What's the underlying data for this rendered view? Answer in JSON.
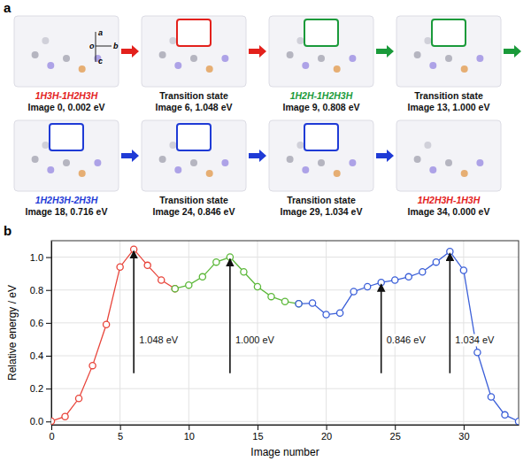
{
  "diagram": {
    "panel_label": "a",
    "axes": [
      "a",
      "b",
      "c",
      "o"
    ],
    "rows": [
      [
        {
          "name": "1H3H-1H2H3H",
          "color": "#e3211c",
          "caption": "Image 0, 0.002 eV",
          "arrow": "#e3211c"
        },
        {
          "name": "Transition state",
          "caption": "Image 6, 1.048 eV",
          "frame": "#e3211c",
          "arrow": "#e3211c"
        },
        {
          "name": "1H2H-1H2H3H",
          "color": "#1a9a3a",
          "caption": "Image 9, 0.808 eV",
          "frame": "#1a9a3a",
          "arrow": "#1a9a3a"
        },
        {
          "name": "Transition state",
          "caption": "Image 13, 1.000 eV",
          "frame": "#1a9a3a",
          "arrow": "#1a9a3a"
        }
      ],
      [
        {
          "name": "1H2H3H-2H3H",
          "color": "#1f3bd6",
          "caption": "Image 18, 0.716 eV",
          "frame": "#1f3bd6",
          "arrow": "#1f3bd6"
        },
        {
          "name": "Transition state",
          "caption": "Image 24, 0.846 eV",
          "frame": "#1f3bd6",
          "arrow": "#1f3bd6"
        },
        {
          "name": "Transition state",
          "caption": "Image 29, 1.034 eV",
          "frame": "#1f3bd6",
          "arrow": "#1f3bd6"
        },
        {
          "name": "1H2H3H-1H3H",
          "color": "#e3211c",
          "caption": "Image 34, 0.000 eV"
        }
      ]
    ]
  },
  "chart_data": {
    "type": "line",
    "panel_label": "b",
    "x_label": "Image number",
    "y_label": "Relative energy / eV",
    "xlim": [
      0,
      34
    ],
    "ylim": [
      -0.02,
      1.1
    ],
    "xticks": [
      0,
      5,
      10,
      15,
      20,
      25,
      30
    ],
    "yticks": [
      {
        "value": 0,
        "label": "0.0"
      },
      {
        "value": 0.2,
        "label": "0.2"
      },
      {
        "value": 0.4,
        "label": "0.4"
      },
      {
        "value": 0.6,
        "label": "0.6"
      },
      {
        "value": 0.8,
        "label": "0.8"
      },
      {
        "value": 1.0,
        "label": "1.0"
      }
    ],
    "grid": true,
    "series": [
      {
        "color": "#e8443a",
        "marker": "open-circle",
        "x": [
          0,
          1,
          2,
          3,
          4,
          5,
          6,
          7,
          8,
          9
        ],
        "values": [
          0.002,
          0.03,
          0.14,
          0.34,
          0.59,
          0.94,
          1.048,
          0.95,
          0.86,
          0.808
        ]
      },
      {
        "color": "#5cb83a",
        "marker": "open-circle",
        "x": [
          9,
          10,
          11,
          12,
          13,
          14,
          15,
          16,
          17,
          18
        ],
        "values": [
          0.808,
          0.83,
          0.88,
          0.97,
          1.0,
          0.91,
          0.82,
          0.76,
          0.73,
          0.716
        ]
      },
      {
        "color": "#3b5fd8",
        "marker": "open-circle",
        "x": [
          18,
          19,
          20,
          21,
          22,
          23,
          24,
          25,
          26,
          27,
          28,
          29,
          30,
          31,
          32,
          33,
          34
        ],
        "values": [
          0.716,
          0.72,
          0.65,
          0.66,
          0.79,
          0.82,
          0.846,
          0.86,
          0.88,
          0.91,
          0.97,
          1.034,
          0.92,
          0.42,
          0.15,
          0.04,
          0.0
        ]
      }
    ],
    "annotations": [
      {
        "x": 6,
        "y": 1.048,
        "text": "1.048 eV"
      },
      {
        "x": 13,
        "y": 1.0,
        "text": "1.000 eV"
      },
      {
        "x": 24,
        "y": 0.846,
        "text": "0.846 eV"
      },
      {
        "x": 29,
        "y": 1.034,
        "text": "1.034 eV"
      }
    ]
  }
}
